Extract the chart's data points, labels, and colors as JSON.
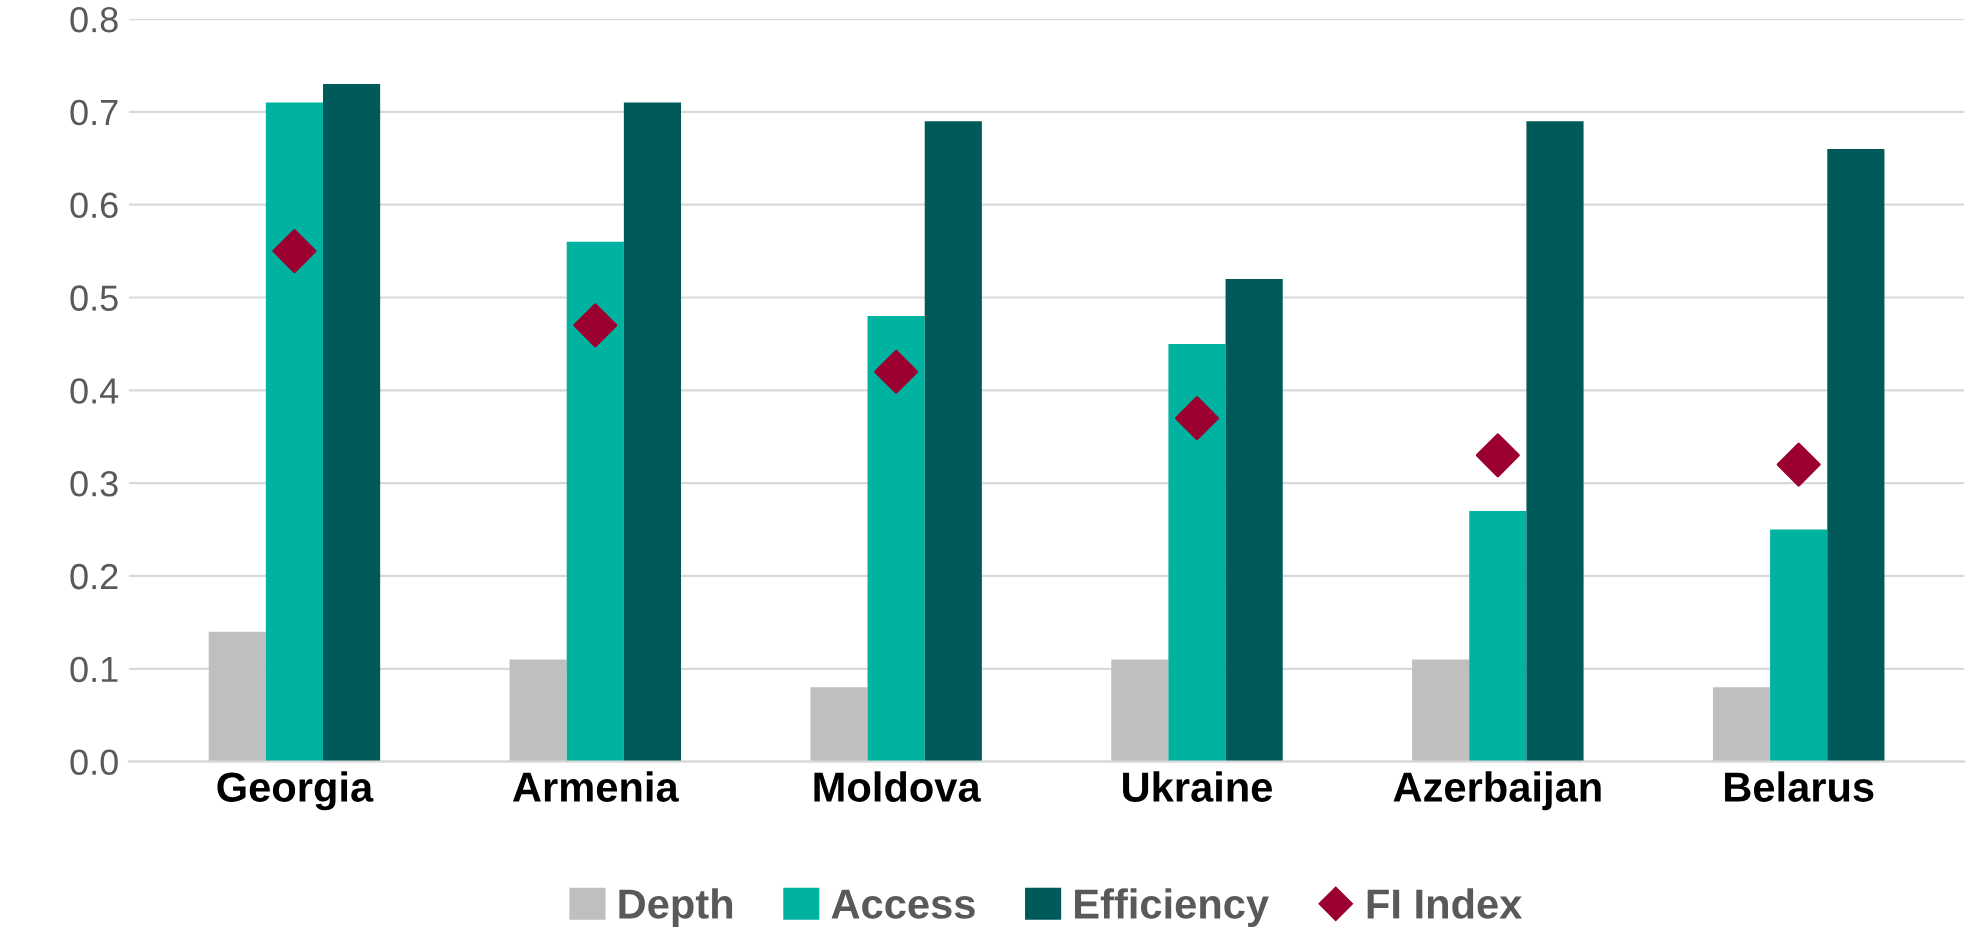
{
  "chart_data": {
    "type": "bar",
    "categories": [
      "Georgia",
      "Armenia",
      "Moldova",
      "Ukraine",
      "Azerbaijan",
      "Belarus"
    ],
    "series": [
      {
        "name": "Depth",
        "color": "#bfbfbf",
        "values": [
          0.14,
          0.11,
          0.08,
          0.11,
          0.11,
          0.08
        ]
      },
      {
        "name": "Access",
        "color": "#00b2a0",
        "values": [
          0.71,
          0.56,
          0.48,
          0.45,
          0.27,
          0.25
        ]
      },
      {
        "name": "Efficiency",
        "color": "#005a5a",
        "values": [
          0.73,
          0.71,
          0.69,
          0.52,
          0.69,
          0.66
        ]
      },
      {
        "name": "FI Index",
        "color": "#9b0030",
        "type": "scatter",
        "marker": "diamond",
        "values": [
          0.55,
          0.47,
          0.42,
          0.37,
          0.33,
          0.32
        ]
      }
    ],
    "ylim": [
      0,
      0.8
    ],
    "yticks": [
      "0.0",
      0.1,
      0.2,
      0.3,
      0.4,
      0.5,
      0.6,
      0.7,
      0.8
    ],
    "grid": "y",
    "legend": "bottom"
  }
}
